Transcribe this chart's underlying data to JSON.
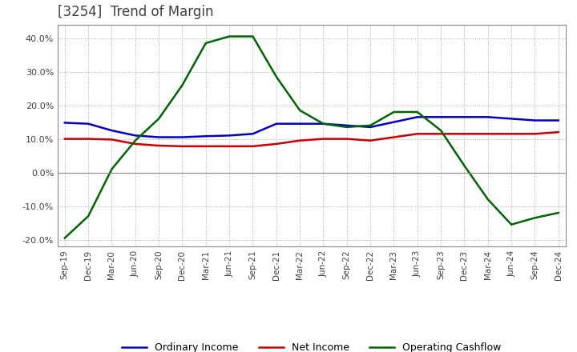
{
  "title": "[3254]  Trend of Margin",
  "title_color": "#404040",
  "background_color": "#ffffff",
  "plot_bg_color": "#ffffff",
  "grid_color": "#aaaaaa",
  "ylim": [
    -22,
    44
  ],
  "yticks": [
    -20,
    -10,
    0,
    10,
    20,
    30,
    40
  ],
  "x_labels": [
    "Sep-19",
    "Dec-19",
    "Mar-20",
    "Jun-20",
    "Sep-20",
    "Dec-20",
    "Mar-21",
    "Jun-21",
    "Sep-21",
    "Dec-21",
    "Mar-22",
    "Jun-22",
    "Sep-22",
    "Dec-22",
    "Mar-23",
    "Jun-23",
    "Sep-23",
    "Dec-23",
    "Mar-24",
    "Jun-24",
    "Sep-24",
    "Dec-24"
  ],
  "ordinary_income": [
    14.8,
    14.5,
    12.5,
    11.0,
    10.5,
    10.5,
    10.8,
    11.0,
    11.5,
    14.5,
    14.5,
    14.5,
    14.0,
    13.5,
    15.0,
    16.5,
    16.5,
    16.5,
    16.5,
    16.0,
    15.5,
    15.5
  ],
  "net_income": [
    10.0,
    10.0,
    9.8,
    8.5,
    8.0,
    7.8,
    7.8,
    7.8,
    7.8,
    8.5,
    9.5,
    10.0,
    10.0,
    9.5,
    10.5,
    11.5,
    11.5,
    11.5,
    11.5,
    11.5,
    11.5,
    12.0
  ],
  "operating_cashflow": [
    -19.5,
    -13.0,
    1.0,
    9.5,
    16.0,
    26.0,
    38.5,
    40.5,
    40.5,
    28.5,
    18.5,
    14.5,
    13.5,
    14.0,
    18.0,
    18.0,
    12.5,
    2.0,
    -8.0,
    -15.5,
    -13.5,
    -12.0
  ],
  "line_colors": {
    "ordinary_income": "#0000cc",
    "net_income": "#cc0000",
    "operating_cashflow": "#006600"
  },
  "legend_labels": {
    "ordinary_income": "Ordinary Income",
    "net_income": "Net Income",
    "operating_cashflow": "Operating Cashflow"
  },
  "line_width": 1.8
}
